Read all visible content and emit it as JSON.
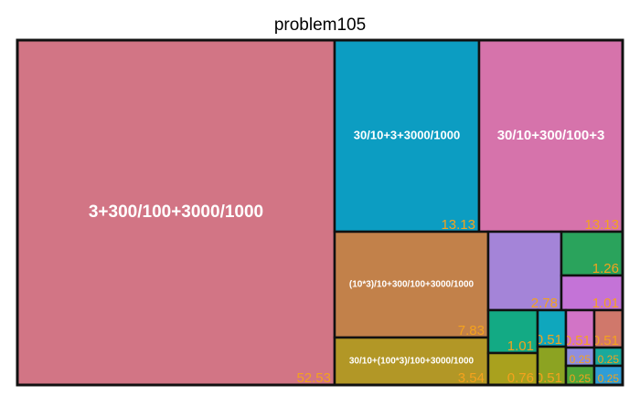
{
  "chart_data": {
    "type": "treemap",
    "title": "problem105",
    "nodes": [
      {
        "label": "3+300/100+3000/1000",
        "value_label": "52.53",
        "value": 52.53,
        "color": "#d27585"
      },
      {
        "label": "30/10+3+3000/1000",
        "value_label": "13.13",
        "value": 13.13,
        "color": "#0c9dc2"
      },
      {
        "label": "30/10+300/100+3",
        "value_label": "13.13",
        "value": 13.13,
        "color": "#d673ab"
      },
      {
        "label": "(10*3)/10+300/100+3000/1000",
        "value_label": "7.83",
        "value": 7.83,
        "color": "#c2814a"
      },
      {
        "label": "30/10+(100*3)/100+3000/1000",
        "value_label": "3.54",
        "value": 3.54,
        "color": "#b29726"
      },
      {
        "label": "",
        "value_label": "2.78",
        "value": 2.78,
        "color": "#a484d8"
      },
      {
        "label": "",
        "value_label": "1.26",
        "value": 1.26,
        "color": "#2aa35c"
      },
      {
        "label": "",
        "value_label": "1.01",
        "value": 1.01,
        "color": "#c473d7"
      },
      {
        "label": "",
        "value_label": "1.01",
        "value": 1.01,
        "color": "#13aa84"
      },
      {
        "label": "",
        "value_label": "0.76",
        "value": 0.76,
        "color": "#a9a11e"
      },
      {
        "label": "",
        "value_label": "0.51",
        "value": 0.51,
        "color": "#0fa7bd"
      },
      {
        "label": "",
        "value_label": "0.51",
        "value": 0.51,
        "color": "#8ca322"
      },
      {
        "label": "",
        "value_label": "0.51",
        "value": 0.51,
        "color": "#d274c6"
      },
      {
        "label": "",
        "value_label": "0.51",
        "value": 0.51,
        "color": "#d0786b"
      },
      {
        "label": "",
        "value_label": "0.25",
        "value": 0.25,
        "color": "#8f8ee0"
      },
      {
        "label": "",
        "value_label": "0.25",
        "value": 0.25,
        "color": "#19a99c"
      },
      {
        "label": "",
        "value_label": "0.25",
        "value": 0.25,
        "color": "#4ea73a"
      },
      {
        "label": "",
        "value_label": "0.25",
        "value": 0.25,
        "color": "#2f9dd6"
      }
    ],
    "label_color": "#ffffff",
    "value_label_color": "#f4a21d",
    "border_color": "#111111"
  }
}
